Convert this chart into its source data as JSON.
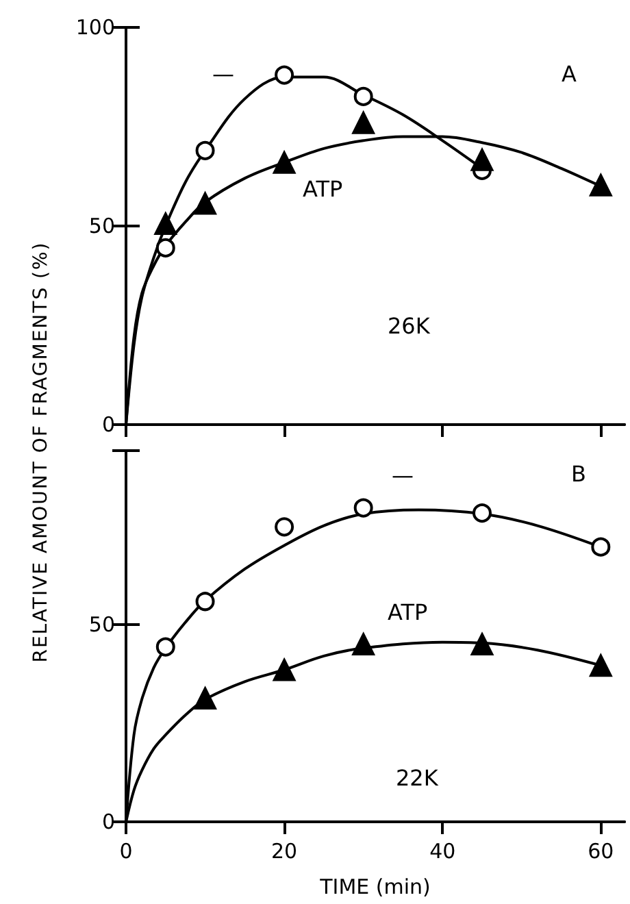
{
  "chart_data": [
    {
      "type": "scatter",
      "ylabel": "RELATIVE AMOUNT OF FRAGMENTS (%)",
      "xlim": [
        0,
        63
      ],
      "ylim": [
        0,
        100
      ],
      "xticks": [
        0,
        20,
        40,
        60
      ],
      "yticks": [
        0,
        50,
        100
      ],
      "tick_labels": "y",
      "grid": false,
      "annotations": [
        "A",
        "26K",
        "—",
        "ATP"
      ],
      "series": [
        {
          "marker": "circle",
          "color": "#000000",
          "x": [
            5,
            10,
            20,
            30,
            45
          ],
          "values": [
            44.5,
            69,
            88,
            82.6,
            64
          ]
        },
        {
          "marker": "triangle",
          "color": "#000000",
          "x": [
            5,
            10,
            20,
            30,
            45,
            60
          ],
          "values": [
            50.6,
            55.7,
            66,
            76,
            66.7,
            60.3
          ]
        },
        {
          "type": "line",
          "marker": "none",
          "color": "#000000",
          "x": [
            0,
            1,
            2,
            3.5,
            5,
            7.5,
            10,
            15,
            20,
            25,
            30,
            35,
            40,
            45
          ],
          "values": [
            0,
            20,
            32,
            42,
            50,
            61,
            69,
            82,
            87.5,
            87.5,
            83,
            78,
            71.5,
            64.5
          ]
        },
        {
          "type": "line",
          "marker": "none",
          "color": "#000000",
          "x": [
            0,
            1,
            2,
            3.5,
            5,
            7.5,
            10,
            15,
            20,
            25,
            30,
            35,
            40,
            45,
            50,
            55,
            60
          ],
          "values": [
            0,
            22,
            33,
            40,
            45,
            51,
            56,
            62,
            66,
            69.5,
            71.5,
            72.5,
            72.5,
            71,
            68.5,
            64.5,
            60
          ]
        }
      ]
    },
    {
      "type": "scatter",
      "xlabel": "TIME (min)",
      "xlim": [
        0,
        63
      ],
      "ylim": [
        0,
        94
      ],
      "xticks": [
        0,
        20,
        40,
        60
      ],
      "yticks": [
        0,
        50,
        {
          "value": 94,
          "label": null
        }
      ],
      "grid": false,
      "annotations": [
        "B",
        "22K",
        "—",
        "ATP"
      ],
      "series": [
        {
          "marker": "circle",
          "color": "#000000",
          "x": [
            5,
            10,
            20,
            30,
            45,
            60
          ],
          "values": [
            44.3,
            55.8,
            74.7,
            79.5,
            78.2,
            69.6
          ]
        },
        {
          "marker": "triangle",
          "color": "#000000",
          "x": [
            10,
            20,
            30,
            45,
            60
          ],
          "values": [
            31.3,
            38.5,
            45,
            45,
            39.6
          ]
        },
        {
          "type": "line",
          "marker": "none",
          "color": "#000000",
          "x": [
            0,
            1,
            2,
            3.5,
            5,
            7.5,
            10,
            15,
            20,
            25,
            30,
            37,
            45,
            52,
            60
          ],
          "values": [
            0,
            22,
            31,
            39,
            44,
            50.5,
            56,
            64,
            70,
            75,
            78,
            79,
            78,
            75,
            69.6
          ]
        },
        {
          "type": "line",
          "marker": "none",
          "color": "#000000",
          "x": [
            0,
            1,
            2,
            3.5,
            5,
            7.5,
            10,
            15,
            20,
            25,
            30,
            40,
            45,
            52,
            60
          ],
          "values": [
            0,
            8,
            13,
            18.5,
            22,
            27,
            31,
            35.5,
            38.5,
            42,
            44,
            45.5,
            45.3,
            43.5,
            39.6
          ]
        }
      ]
    }
  ]
}
